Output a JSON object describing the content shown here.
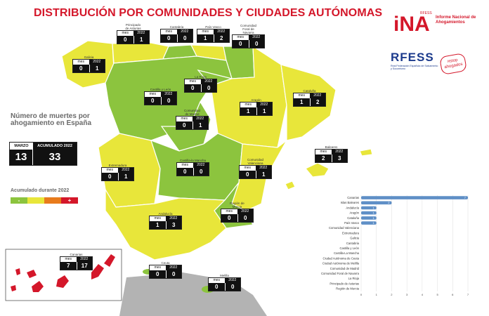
{
  "title": "DISTRIBUCIÓN POR COMUNIDADES Y CIUDADES AUTÓNOMAS",
  "colors": {
    "green": "#8cc43e",
    "yellow": "#e8e63a",
    "red": "#d4172a",
    "orange": "#e87b1c",
    "bar": "#5f8fc6",
    "sea_grey": "#b3b3b3"
  },
  "header_labels": {
    "mes": "mes",
    "year": "2022"
  },
  "regions": [
    {
      "key": "galicia",
      "name": "Galicia",
      "mes": "0",
      "acum": "1"
    },
    {
      "key": "asturias",
      "name": "Principado\nde Asturias",
      "mes": "0",
      "acum": "1"
    },
    {
      "key": "cantabria",
      "name": "Cantabria",
      "mes": "0",
      "acum": "0"
    },
    {
      "key": "pais_vasco",
      "name": "País Vasco",
      "mes": "1",
      "acum": "2"
    },
    {
      "key": "navarra",
      "name": "Comunidad\nForal de\nNavarra",
      "mes": "0",
      "acum": "0"
    },
    {
      "key": "la_rioja",
      "name": "La Rioja",
      "mes": "0",
      "acum": "0"
    },
    {
      "key": "castilla_leon",
      "name": "Castilla y León",
      "mes": "0",
      "acum": "0"
    },
    {
      "key": "aragon",
      "name": "Aragón",
      "mes": "1",
      "acum": "1"
    },
    {
      "key": "cataluna",
      "name": "Cataluña",
      "mes": "1",
      "acum": "2"
    },
    {
      "key": "madrid",
      "name": "Comunidad\nde Madrid",
      "mes": "0",
      "acum": "1"
    },
    {
      "key": "baleares",
      "name": "Baleares",
      "mes": "2",
      "acum": "3"
    },
    {
      "key": "extremadura",
      "name": "Extremadura",
      "mes": "0",
      "acum": "1"
    },
    {
      "key": "castilla_mancha",
      "name": "Castilla-la Mancha",
      "mes": "0",
      "acum": "0"
    },
    {
      "key": "valenciana",
      "name": "Comunidad\nValenciana",
      "mes": "0",
      "acum": "1"
    },
    {
      "key": "murcia",
      "name": "Región de\nMurcia",
      "mes": "0",
      "acum": "0"
    },
    {
      "key": "andalucia",
      "name": "Andalucía",
      "mes": "1",
      "acum": "3"
    },
    {
      "key": "canarias",
      "name": "Canarias",
      "mes": "7",
      "acum": "17"
    },
    {
      "key": "ceuta",
      "name": "Ceuta",
      "mes": "0",
      "acum": "0"
    },
    {
      "key": "melilla",
      "name": "Melilla",
      "mes": "0",
      "acum": "0"
    }
  ],
  "summary": {
    "title": "Número de muertes por ahogamiento en España",
    "month_label": "MARZO",
    "acum_label": "ACUMULADO 2022",
    "month_value": "13",
    "acum_value": "33"
  },
  "legend": {
    "title": "Acumulado durante 2022",
    "items": [
      {
        "label": "-",
        "color": "#8cc43e"
      },
      {
        "label": "",
        "color": "#e8e63a"
      },
      {
        "label": "",
        "color": "#e87b1c"
      },
      {
        "label": "+",
        "color": "#d4172a"
      }
    ]
  },
  "logos": {
    "ina_mark": "iNA",
    "ina_sup": "RFESS",
    "ina_text": "Informe Nacional de Ahogamientos",
    "rfess_word": "RFESS",
    "rfess_text": "Real Federación Española de Salvamento y Socorrismo",
    "stop_line1": "#stop",
    "stop_line2": "ahogados"
  },
  "chart_data": {
    "type": "bar",
    "orientation": "horizontal",
    "categories": [
      "Canarias",
      "Islas Baleares",
      "Andalucía",
      "Aragón",
      "Cataluña",
      "País Vasco",
      "Comunidad Valenciana",
      "Extremadura",
      "Galicia",
      "Cantabria",
      "Castilla y León",
      "Castilla-La Mancha",
      "Ciudad Autónoma de Ceuta",
      "Ciudad Autónoma de Melilla",
      "Comunidad de Madrid",
      "Comunidad Foral de Navarra",
      "La Rioja",
      "Principado de Asturias",
      "Región de Murcia"
    ],
    "values": [
      7,
      2,
      1,
      1,
      1,
      1,
      0,
      0,
      0,
      0,
      0,
      0,
      0,
      0,
      0,
      0,
      0,
      0,
      0
    ],
    "data_labels": [
      "7",
      "2",
      "1",
      "1",
      "1",
      "1",
      "",
      "",
      "",
      "",
      "",
      "",
      "",
      "",
      "",
      "",
      "",
      "",
      ""
    ],
    "xlim": [
      0,
      7
    ],
    "xticks": [
      "0",
      "1",
      "2",
      "3",
      "4",
      "5",
      "6",
      "7"
    ]
  }
}
